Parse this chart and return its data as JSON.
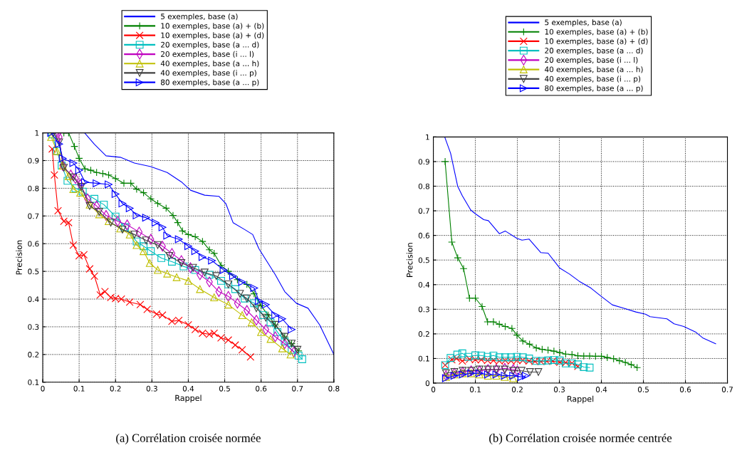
{
  "chart_data": [
    {
      "type": "line",
      "title": "(a) Corrélation croisée normée",
      "xlabel": "Rappel",
      "ylabel": "Precision",
      "xlim": [
        0,
        0.8
      ],
      "ylim": [
        0.1,
        1
      ],
      "xticks": [
        0,
        0.1,
        0.2,
        0.3,
        0.4,
        0.5,
        0.6,
        0.7,
        0.8
      ],
      "yticks": [
        0.1,
        0.2,
        0.3,
        0.4,
        0.5,
        0.6,
        0.7,
        0.8,
        0.9,
        1
      ],
      "grid": true,
      "legend": "top",
      "line_style": "solid",
      "series": [
        {
          "name": "5 exemples, base (a)",
          "color": "#0000ff",
          "marker": "none",
          "x": [
            0.115,
            0.142,
            0.174,
            0.213,
            0.252,
            0.297,
            0.342,
            0.381,
            0.406,
            0.445,
            0.484,
            0.503,
            0.523,
            0.555,
            0.577,
            0.594,
            0.619,
            0.639,
            0.665,
            0.697,
            0.729,
            0.761,
            0.8
          ],
          "values": [
            1.0,
            0.959,
            0.917,
            0.912,
            0.891,
            0.878,
            0.857,
            0.823,
            0.793,
            0.775,
            0.771,
            0.745,
            0.676,
            0.651,
            0.633,
            0.582,
            0.53,
            0.488,
            0.427,
            0.385,
            0.367,
            0.307,
            0.2
          ]
        },
        {
          "name": "10 exemples, base (a) + (b)",
          "color": "#008000",
          "marker": "plus",
          "x": [
            0.058,
            0.071,
            0.087,
            0.1,
            0.116,
            0.132,
            0.148,
            0.165,
            0.181,
            0.2,
            0.223,
            0.242,
            0.258,
            0.277,
            0.297,
            0.316,
            0.339,
            0.358,
            0.371,
            0.384,
            0.4,
            0.419,
            0.439,
            0.458,
            0.471,
            0.49,
            0.51,
            0.535,
            0.561,
            0.581,
            0.6,
            0.619,
            0.639,
            0.665,
            0.684,
            0.703
          ],
          "values": [
            1.0,
            1.0,
            0.951,
            0.908,
            0.87,
            0.865,
            0.857,
            0.853,
            0.848,
            0.835,
            0.818,
            0.818,
            0.797,
            0.784,
            0.762,
            0.745,
            0.728,
            0.702,
            0.676,
            0.646,
            0.633,
            0.625,
            0.608,
            0.578,
            0.565,
            0.522,
            0.5,
            0.47,
            0.453,
            0.419,
            0.376,
            0.342,
            0.307,
            0.264,
            0.239,
            0.213
          ]
        },
        {
          "name": "10 exemples, base (a) + (d)",
          "color": "#ff0000",
          "marker": "x",
          "x": [
            0.026,
            0.032,
            0.042,
            0.058,
            0.071,
            0.084,
            0.1,
            0.113,
            0.129,
            0.142,
            0.158,
            0.171,
            0.187,
            0.2,
            0.216,
            0.239,
            0.268,
            0.287,
            0.313,
            0.329,
            0.355,
            0.374,
            0.4,
            0.419,
            0.439,
            0.458,
            0.471,
            0.49,
            0.51,
            0.529,
            0.548,
            0.571
          ],
          "values": [
            0.942,
            0.848,
            0.719,
            0.681,
            0.676,
            0.595,
            0.556,
            0.56,
            0.509,
            0.483,
            0.415,
            0.427,
            0.406,
            0.402,
            0.4,
            0.389,
            0.38,
            0.363,
            0.346,
            0.342,
            0.32,
            0.323,
            0.307,
            0.29,
            0.277,
            0.273,
            0.277,
            0.26,
            0.252,
            0.234,
            0.217,
            0.191
          ]
        },
        {
          "name": "20 exemples, base (a ... d)",
          "color": "#00bfbf",
          "marker": "square",
          "x": [
            0.026,
            0.039,
            0.052,
            0.068,
            0.09,
            0.11,
            0.142,
            0.168,
            0.2,
            0.226,
            0.258,
            0.277,
            0.297,
            0.326,
            0.355,
            0.387,
            0.419,
            0.458,
            0.49,
            0.51,
            0.529,
            0.555,
            0.581,
            0.606,
            0.626,
            0.645,
            0.665,
            0.684,
            0.703,
            0.713
          ],
          "values": [
            0.994,
            0.934,
            0.882,
            0.827,
            0.8,
            0.788,
            0.762,
            0.741,
            0.698,
            0.659,
            0.608,
            0.591,
            0.573,
            0.548,
            0.535,
            0.518,
            0.505,
            0.488,
            0.466,
            0.453,
            0.436,
            0.402,
            0.385,
            0.342,
            0.316,
            0.281,
            0.247,
            0.217,
            0.196,
            0.183
          ]
        },
        {
          "name": "20 exemples, base (i ... l)",
          "color": "#bf00bf",
          "marker": "diamond",
          "x": [
            0.042,
            0.045,
            0.055,
            0.077,
            0.09,
            0.103,
            0.123,
            0.148,
            0.174,
            0.206,
            0.232,
            0.265,
            0.297,
            0.329,
            0.355,
            0.381,
            0.406,
            0.432,
            0.458,
            0.484,
            0.51,
            0.535,
            0.561,
            0.587,
            0.613,
            0.639,
            0.665,
            0.69
          ],
          "values": [
            1.0,
            0.985,
            0.882,
            0.848,
            0.835,
            0.814,
            0.762,
            0.736,
            0.702,
            0.681,
            0.668,
            0.642,
            0.616,
            0.591,
            0.565,
            0.539,
            0.513,
            0.488,
            0.462,
            0.427,
            0.41,
            0.385,
            0.359,
            0.324,
            0.29,
            0.264,
            0.239,
            0.209
          ]
        },
        {
          "name": "40 exemples, base (a ... h)",
          "color": "#bfbf00",
          "marker": "triangle",
          "x": [
            0.023,
            0.039,
            0.055,
            0.071,
            0.084,
            0.103,
            0.129,
            0.155,
            0.181,
            0.213,
            0.239,
            0.258,
            0.277,
            0.294,
            0.316,
            0.342,
            0.368,
            0.4,
            0.432,
            0.471,
            0.51,
            0.548,
            0.574,
            0.6,
            0.626,
            0.658,
            0.681
          ],
          "values": [
            0.985,
            0.934,
            0.882,
            0.844,
            0.797,
            0.784,
            0.741,
            0.706,
            0.681,
            0.655,
            0.633,
            0.595,
            0.573,
            0.53,
            0.505,
            0.492,
            0.479,
            0.466,
            0.436,
            0.406,
            0.38,
            0.342,
            0.316,
            0.281,
            0.256,
            0.222,
            0.2
          ]
        },
        {
          "name": "40 exemples, base (i ... p)",
          "color": "#404040",
          "marker": "triangle_down",
          "x": [
            0.029,
            0.045,
            0.058,
            0.084,
            0.106,
            0.129,
            0.155,
            0.187,
            0.219,
            0.252,
            0.284,
            0.316,
            0.348,
            0.381,
            0.413,
            0.445,
            0.477,
            0.51,
            0.542,
            0.561,
            0.587,
            0.613,
            0.639,
            0.665,
            0.684,
            0.7
          ],
          "values": [
            1.0,
            0.966,
            0.874,
            0.839,
            0.805,
            0.736,
            0.715,
            0.676,
            0.651,
            0.633,
            0.612,
            0.595,
            0.556,
            0.53,
            0.513,
            0.496,
            0.483,
            0.453,
            0.419,
            0.402,
            0.367,
            0.333,
            0.307,
            0.264,
            0.239,
            0.217
          ]
        },
        {
          "name": "80 exemples, base (a ... p)",
          "color": "#0000ff",
          "marker": "triangle_right",
          "x": [
            0.023,
            0.045,
            0.055,
            0.084,
            0.1,
            0.116,
            0.148,
            0.181,
            0.2,
            0.219,
            0.239,
            0.258,
            0.284,
            0.31,
            0.329,
            0.342,
            0.374,
            0.4,
            0.419,
            0.439,
            0.465,
            0.497,
            0.523,
            0.548,
            0.581,
            0.594,
            0.613,
            0.639,
            0.658,
            0.684
          ],
          "values": [
            1.0,
            0.96,
            0.908,
            0.891,
            0.865,
            0.822,
            0.818,
            0.814,
            0.779,
            0.745,
            0.728,
            0.702,
            0.694,
            0.676,
            0.659,
            0.629,
            0.616,
            0.591,
            0.573,
            0.552,
            0.539,
            0.505,
            0.483,
            0.462,
            0.44,
            0.393,
            0.38,
            0.342,
            0.329,
            0.29
          ]
        }
      ]
    },
    {
      "type": "line",
      "title": "(b) Corrélation croisée normée centrée",
      "xlabel": "Rappel",
      "ylabel": "Precision",
      "xlim": [
        0,
        0.7
      ],
      "ylim": [
        0,
        1
      ],
      "xticks": [
        0,
        0.1,
        0.2,
        0.3,
        0.4,
        0.5,
        0.6,
        0.7
      ],
      "yticks": [
        0,
        0.1,
        0.2,
        0.3,
        0.4,
        0.5,
        0.6,
        0.7,
        0.8,
        0.9,
        1
      ],
      "grid": true,
      "legend": "top",
      "line_style": "solid",
      "series": [
        {
          "name": "5 exemples, base (a)",
          "color": "#0000ff",
          "marker": "none",
          "x": [
            0.027,
            0.041,
            0.058,
            0.069,
            0.089,
            0.1,
            0.12,
            0.131,
            0.157,
            0.171,
            0.199,
            0.211,
            0.228,
            0.256,
            0.273,
            0.301,
            0.324,
            0.347,
            0.375,
            0.4,
            0.426,
            0.454,
            0.482,
            0.505,
            0.516,
            0.556,
            0.573,
            0.596,
            0.624,
            0.641,
            0.672
          ],
          "values": [
            1.0,
            0.934,
            0.799,
            0.761,
            0.703,
            0.688,
            0.664,
            0.66,
            0.607,
            0.618,
            0.588,
            0.581,
            0.585,
            0.53,
            0.528,
            0.467,
            0.443,
            0.414,
            0.386,
            0.352,
            0.318,
            0.304,
            0.289,
            0.28,
            0.27,
            0.261,
            0.241,
            0.23,
            0.208,
            0.184,
            0.16
          ]
        },
        {
          "name": "10 exemples, base (a) + (b)",
          "color": "#008000",
          "marker": "plus",
          "x": [
            0.028,
            0.044,
            0.058,
            0.072,
            0.086,
            0.1,
            0.116,
            0.129,
            0.143,
            0.157,
            0.171,
            0.187,
            0.199,
            0.213,
            0.229,
            0.245,
            0.259,
            0.273,
            0.287,
            0.301,
            0.315,
            0.33,
            0.344,
            0.358,
            0.372,
            0.386,
            0.4,
            0.414,
            0.429,
            0.443,
            0.457,
            0.471,
            0.485
          ],
          "values": [
            0.9,
            0.573,
            0.509,
            0.465,
            0.345,
            0.345,
            0.311,
            0.249,
            0.249,
            0.239,
            0.23,
            0.222,
            0.195,
            0.171,
            0.158,
            0.143,
            0.137,
            0.134,
            0.13,
            0.124,
            0.118,
            0.116,
            0.111,
            0.11,
            0.11,
            0.109,
            0.109,
            0.104,
            0.099,
            0.091,
            0.084,
            0.075,
            0.063
          ]
        },
        {
          "name": "10 exemples, base (a) + (d)",
          "color": "#ff0000",
          "marker": "x",
          "x": [
            0.028,
            0.044,
            0.055,
            0.069,
            0.086,
            0.1,
            0.114,
            0.129,
            0.143,
            0.157,
            0.171,
            0.185,
            0.199,
            0.213,
            0.228,
            0.242,
            0.256,
            0.27,
            0.284,
            0.301,
            0.315,
            0.33,
            0.344
          ],
          "values": [
            0.073,
            0.095,
            0.1,
            0.09,
            0.097,
            0.095,
            0.095,
            0.092,
            0.092,
            0.09,
            0.092,
            0.09,
            0.092,
            0.092,
            0.09,
            0.088,
            0.088,
            0.089,
            0.089,
            0.085,
            0.083,
            0.081,
            0.068
          ]
        },
        {
          "name": "20 exemples, base (a ... d)",
          "color": "#00bfbf",
          "marker": "square",
          "x": [
            0.028,
            0.041,
            0.057,
            0.069,
            0.083,
            0.1,
            0.114,
            0.129,
            0.143,
            0.157,
            0.171,
            0.185,
            0.199,
            0.213,
            0.228,
            0.245,
            0.259,
            0.273,
            0.287,
            0.301,
            0.315,
            0.33,
            0.344,
            0.358,
            0.372
          ],
          "values": [
            0.073,
            0.102,
            0.116,
            0.121,
            0.107,
            0.113,
            0.112,
            0.107,
            0.112,
            0.105,
            0.105,
            0.105,
            0.107,
            0.105,
            0.1,
            0.09,
            0.09,
            0.092,
            0.094,
            0.092,
            0.08,
            0.08,
            0.076,
            0.065,
            0.063
          ]
        },
        {
          "name": "20 exemples, base (i ... l)",
          "color": "#bf00bf",
          "marker": "diamond",
          "x": [
            0.03,
            0.05,
            0.07,
            0.09,
            0.11,
            0.13,
            0.15,
            0.17,
            0.19,
            0.2
          ],
          "values": [
            0.03,
            0.04,
            0.045,
            0.05,
            0.05,
            0.055,
            0.055,
            0.06,
            0.055,
            0.05
          ]
        },
        {
          "name": "40 exemples, base (a ... h)",
          "color": "#bfbf00",
          "marker": "triangle",
          "x": [
            0.03,
            0.05,
            0.07,
            0.09,
            0.11,
            0.13,
            0.15,
            0.17,
            0.19
          ],
          "values": [
            0.025,
            0.035,
            0.04,
            0.04,
            0.035,
            0.03,
            0.03,
            0.025,
            0.02
          ]
        },
        {
          "name": "40 exemples, base (i ... p)",
          "color": "#404040",
          "marker": "triangle_down",
          "x": [
            0.03,
            0.05,
            0.07,
            0.09,
            0.11,
            0.13,
            0.15,
            0.17,
            0.19,
            0.21,
            0.23,
            0.25
          ],
          "values": [
            0.04,
            0.045,
            0.05,
            0.05,
            0.055,
            0.055,
            0.055,
            0.055,
            0.05,
            0.05,
            0.045,
            0.045
          ]
        },
        {
          "name": "80 exemples, base (a ... p)",
          "color": "#0000ff",
          "marker": "triangle_right",
          "x": [
            0.03,
            0.05,
            0.07,
            0.09,
            0.11,
            0.13,
            0.15,
            0.17,
            0.19,
            0.21,
            0.22
          ],
          "values": [
            0.02,
            0.03,
            0.035,
            0.04,
            0.04,
            0.035,
            0.035,
            0.03,
            0.03,
            0.025,
            0.03
          ]
        }
      ]
    }
  ]
}
